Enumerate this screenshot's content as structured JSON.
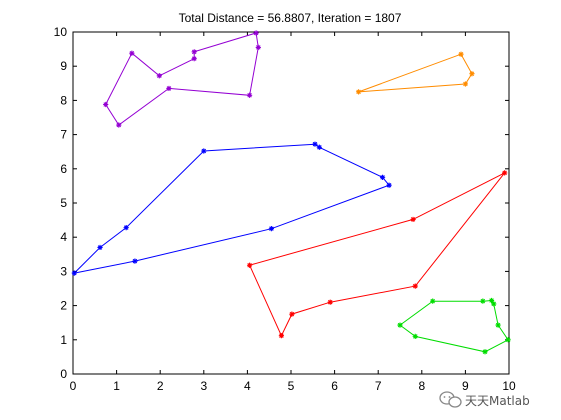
{
  "chart_data": {
    "type": "line",
    "title": "Total Distance = 56.8807, Iteration = 1807",
    "xlabel": "",
    "ylabel": "",
    "xlim": [
      0,
      10
    ],
    "ylim": [
      0,
      10
    ],
    "xticks": [
      "0",
      "1",
      "2",
      "3",
      "4",
      "5",
      "6",
      "7",
      "8",
      "9",
      "10"
    ],
    "yticks": [
      "0",
      "1",
      "2",
      "3",
      "4",
      "5",
      "6",
      "7",
      "8",
      "9",
      "10"
    ],
    "grid": false,
    "legend": "none",
    "series": [
      {
        "color": "#0000ff",
        "marker": "star",
        "closed": true,
        "x": [
          0.03,
          0.62,
          1.22,
          3.0,
          5.55,
          5.65,
          7.1,
          7.25,
          4.55,
          1.42
        ],
        "y": [
          2.95,
          3.7,
          4.28,
          6.52,
          6.72,
          6.63,
          5.75,
          5.52,
          4.25,
          3.3
        ]
      },
      {
        "color": "#ff0000",
        "marker": "star",
        "closed": true,
        "x": [
          4.05,
          7.8,
          9.9,
          7.85,
          5.9,
          5.02,
          4.78
        ],
        "y": [
          3.18,
          4.52,
          5.88,
          2.57,
          2.1,
          1.75,
          1.12
        ]
      },
      {
        "color": "#00dd00",
        "marker": "star",
        "closed": true,
        "x": [
          7.5,
          8.25,
          9.4,
          9.6,
          9.65,
          9.75,
          9.98,
          9.45,
          7.85
        ],
        "y": [
          1.43,
          2.13,
          2.13,
          2.15,
          2.05,
          1.43,
          1.0,
          0.65,
          1.1
        ]
      },
      {
        "color": "#9400d3",
        "marker": "star",
        "closed": true,
        "x": [
          0.75,
          1.35,
          1.98,
          2.78,
          2.78,
          4.2,
          4.25,
          4.05,
          2.2,
          1.05
        ],
        "y": [
          7.88,
          9.38,
          8.72,
          9.22,
          9.42,
          9.97,
          9.55,
          8.15,
          8.35,
          7.28
        ]
      },
      {
        "color": "#ff8c00",
        "marker": "star",
        "closed": true,
        "x": [
          6.55,
          8.9,
          9.15,
          9.0
        ],
        "y": [
          8.25,
          9.35,
          8.78,
          8.48
        ]
      }
    ]
  },
  "watermark": {
    "icon": "wechat-icon",
    "text": "天天Matlab"
  }
}
